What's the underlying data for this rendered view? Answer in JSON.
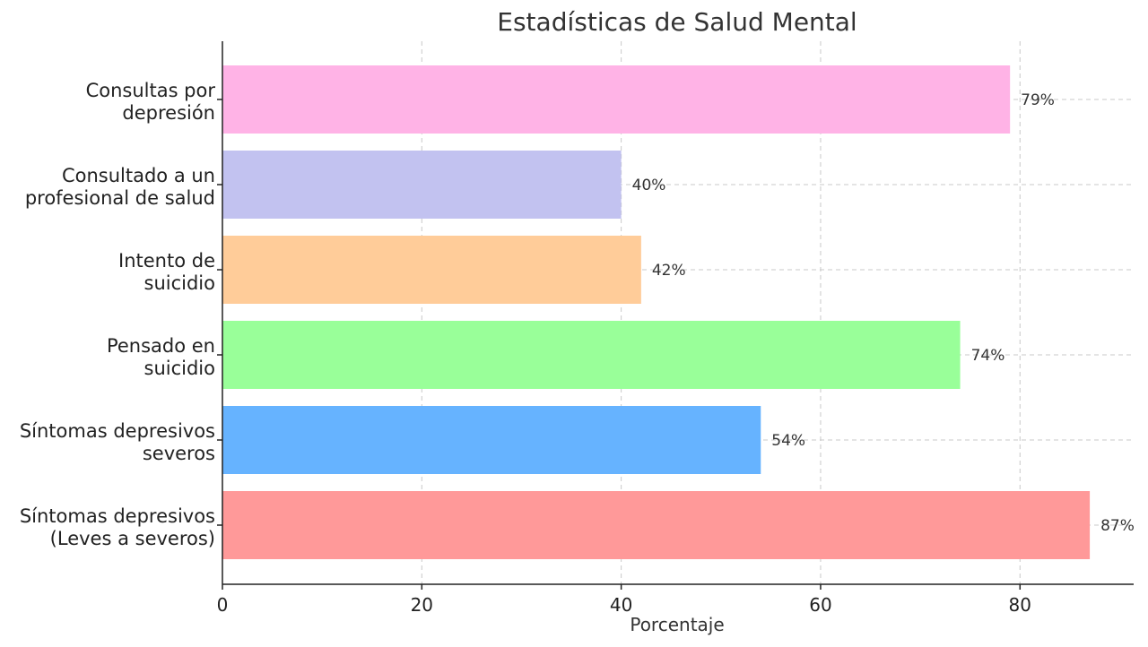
{
  "chart_data": {
    "type": "bar",
    "orientation": "horizontal",
    "title": "Estadísticas de Salud Mental",
    "xlabel": "Porcentaje",
    "ylabel": "",
    "xlim": [
      0,
      91.4
    ],
    "xticks": [
      0,
      20,
      40,
      60,
      80
    ],
    "grid": true,
    "categories": [
      [
        "Consultas por",
        "depresión"
      ],
      [
        "Consultado a un",
        "profesional de salud"
      ],
      [
        "Intento de",
        "suicidio"
      ],
      [
        "Pensado en",
        "suicidio"
      ],
      [
        "Síntomas depresivos",
        "severos"
      ],
      [
        "Síntomas depresivos",
        "(Leves a severos)"
      ]
    ],
    "values": [
      79,
      40,
      42,
      74,
      54,
      87
    ],
    "value_labels": [
      "79%",
      "40%",
      "42%",
      "74%",
      "54%",
      "87%"
    ],
    "colors": [
      "#ffb3e6",
      "#c2c2f0",
      "#ffcc99",
      "#99ff99",
      "#66b3ff",
      "#ff9999"
    ]
  }
}
